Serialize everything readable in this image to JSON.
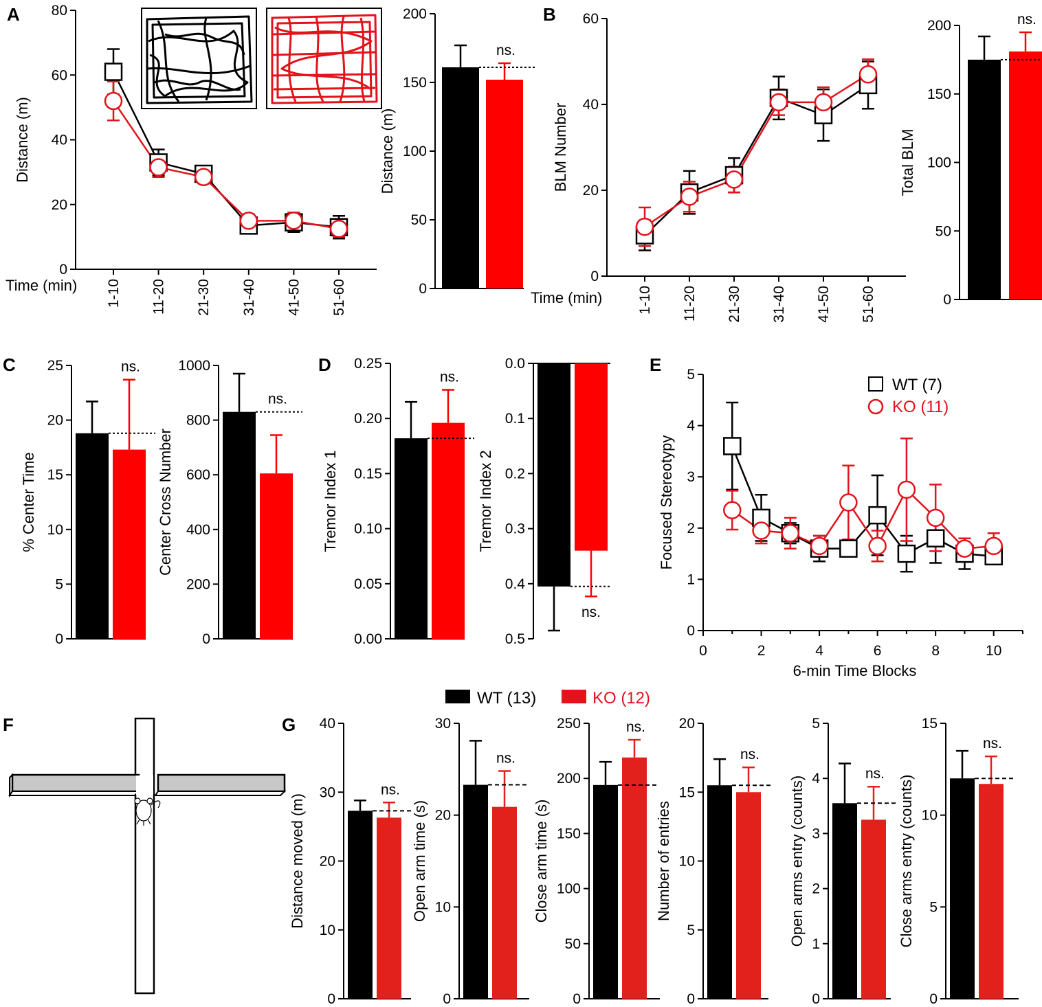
{
  "figure": {
    "colors": {
      "wt": "#000000",
      "ko": "#e3121b",
      "ko_bar": "#ff0000"
    },
    "legends": {
      "e": [
        {
          "label": "WT (7)",
          "color": "#000000"
        },
        {
          "label": "KO (11)",
          "color": "#e3121b"
        }
      ],
      "g": [
        {
          "label": "WT (13)",
          "color": "#000000"
        },
        {
          "label": "KO (12)",
          "color": "#e3121b"
        }
      ]
    }
  },
  "chart_data": [
    {
      "id": "A1",
      "panel": "A",
      "type": "line",
      "ylabel": "Distance (m)",
      "xlabel": "Time (min)",
      "categories": [
        "1-10",
        "11-20",
        "21-30",
        "31-40",
        "41-50",
        "51-60"
      ],
      "ylim": [
        0,
        80
      ],
      "yticks": [
        0,
        20,
        40,
        60,
        80
      ],
      "series": [
        {
          "name": "WT",
          "marker": "square",
          "values": [
            61,
            33,
            29.5,
            13.5,
            14.5,
            13
          ],
          "errors": [
            7,
            4,
            2.5,
            2.5,
            3,
            3.5
          ]
        },
        {
          "name": "KO",
          "marker": "circle",
          "values": [
            52,
            31.5,
            28.5,
            15,
            15,
            12.5
          ],
          "errors": [
            6,
            3,
            2,
            2,
            2.5,
            2.5
          ]
        }
      ],
      "insets": [
        "WT open-field track",
        "KO open-field track"
      ]
    },
    {
      "id": "A2",
      "panel": "A",
      "type": "bar",
      "ylabel": "Distance (m)",
      "ylim": [
        0,
        200
      ],
      "yticks": [
        0,
        50,
        100,
        150,
        200
      ],
      "bars": [
        {
          "name": "WT",
          "value": 161,
          "error": 16
        },
        {
          "name": "KO",
          "value": 152,
          "error": 12
        }
      ],
      "annotation": "ns."
    },
    {
      "id": "B1",
      "panel": "B",
      "type": "line",
      "ylabel": "BLM Number",
      "xlabel": "Time (min)",
      "categories": [
        "1-10",
        "11-20",
        "21-30",
        "31-40",
        "41-50",
        "51-60"
      ],
      "ylim": [
        0,
        60
      ],
      "yticks": [
        0,
        20,
        40,
        60
      ],
      "series": [
        {
          "name": "WT",
          "marker": "square",
          "values": [
            9.5,
            19.5,
            23.5,
            41.5,
            37.5,
            44.5
          ],
          "errors": [
            3.5,
            5,
            4,
            5,
            6,
            5.5
          ]
        },
        {
          "name": "KO",
          "marker": "circle",
          "values": [
            11.5,
            18.5,
            22.5,
            40.5,
            40.5,
            47
          ],
          "errors": [
            4.5,
            3.5,
            3,
            3,
            3.5,
            3.5
          ]
        }
      ]
    },
    {
      "id": "B2",
      "panel": "B",
      "type": "bar",
      "ylabel": "Total BLM",
      "ylim": [
        0,
        200
      ],
      "yticks": [
        0,
        50,
        100,
        150,
        200
      ],
      "bars": [
        {
          "name": "WT",
          "value": 175,
          "error": 17
        },
        {
          "name": "KO",
          "value": 181,
          "error": 14
        }
      ],
      "annotation": "ns."
    },
    {
      "id": "C1",
      "panel": "C",
      "type": "bar",
      "ylabel": "% Center Time",
      "ylim": [
        0,
        25
      ],
      "yticks": [
        0,
        5,
        10,
        15,
        20,
        25
      ],
      "bars": [
        {
          "name": "WT",
          "value": 18.8,
          "error": 2.9
        },
        {
          "name": "KO",
          "value": 17.3,
          "error": 6.4
        }
      ],
      "annotation": "ns."
    },
    {
      "id": "C2",
      "panel": "C",
      "type": "bar",
      "ylabel": "Center Cross Number",
      "ylim": [
        0,
        1000
      ],
      "yticks": [
        0,
        200,
        400,
        600,
        800,
        1000
      ],
      "bars": [
        {
          "name": "WT",
          "value": 830,
          "error": 140
        },
        {
          "name": "KO",
          "value": 605,
          "error": 140
        }
      ],
      "annotation": "ns."
    },
    {
      "id": "D1",
      "panel": "D",
      "type": "bar",
      "ylabel": "Tremor Index 1",
      "ylim": [
        0,
        0.25
      ],
      "yticks": [
        "0.00",
        "0.05",
        "0.10",
        "0.15",
        "0.20",
        "0.25"
      ],
      "bars": [
        {
          "name": "WT",
          "value": 0.182,
          "error": 0.033
        },
        {
          "name": "KO",
          "value": 0.196,
          "error": 0.03
        }
      ],
      "annotation": "ns."
    },
    {
      "id": "D2",
      "panel": "D",
      "type": "bar",
      "ylabel": "Tremor Index 2",
      "ylim": [
        0,
        0.5
      ],
      "inverted": true,
      "yticks": [
        "0.0",
        "0.1",
        "0.2",
        "0.3",
        "0.4",
        "0.5"
      ],
      "bars": [
        {
          "name": "WT",
          "value": 0.405,
          "error": 0.08
        },
        {
          "name": "KO",
          "value": 0.34,
          "error": 0.083
        }
      ],
      "annotation": "ns."
    },
    {
      "id": "E",
      "panel": "E",
      "type": "line",
      "ylabel": "Focused Stereotypy",
      "xlabel": "6-min Time Blocks",
      "xlim": [
        0,
        11
      ],
      "xticks": [
        0,
        2,
        4,
        6,
        8,
        10
      ],
      "ylim": [
        0,
        5
      ],
      "yticks": [
        0,
        1,
        2,
        3,
        4,
        5
      ],
      "x": [
        1,
        2,
        3,
        4,
        5,
        6,
        7,
        8,
        9,
        10
      ],
      "series": [
        {
          "name": "WT (7)",
          "marker": "square",
          "values": [
            3.6,
            2.2,
            1.9,
            1.6,
            1.6,
            2.25,
            1.5,
            1.8,
            1.5,
            1.45
          ],
          "errors": [
            0.85,
            0.45,
            0.2,
            0.25,
            0,
            0.78,
            0.35,
            0.48,
            0.3,
            0.15
          ]
        },
        {
          "name": "KO (11)",
          "marker": "circle",
          "values": [
            2.35,
            1.95,
            1.9,
            1.65,
            2.5,
            1.65,
            2.75,
            2.2,
            1.6,
            1.65
          ],
          "errors": [
            0.38,
            0.25,
            0.3,
            0.2,
            0.72,
            0.3,
            1.0,
            0.65,
            0.2,
            0.25
          ]
        }
      ]
    },
    {
      "id": "G1",
      "panel": "G",
      "type": "bar",
      "ylabel": "Distance moved (m)",
      "ylim": [
        0,
        40
      ],
      "yticks": [
        0,
        10,
        20,
        30,
        40
      ],
      "bars": [
        {
          "name": "WT",
          "value": 27.3,
          "error": 1.5
        },
        {
          "name": "KO",
          "value": 26.3,
          "error": 2.2
        }
      ],
      "annotation": "ns."
    },
    {
      "id": "G2",
      "panel": "G",
      "type": "bar",
      "ylabel": "Open arm time (s)",
      "ylim": [
        0,
        30
      ],
      "yticks": [
        0,
        10,
        20,
        30
      ],
      "bars": [
        {
          "name": "WT",
          "value": 23.3,
          "error": 4.8
        },
        {
          "name": "KO",
          "value": 20.9,
          "error": 3.9
        }
      ],
      "annotation": "ns."
    },
    {
      "id": "G3",
      "panel": "G",
      "type": "bar",
      "ylabel": "Close arm time (s)",
      "ylim": [
        0,
        250
      ],
      "yticks": [
        0,
        50,
        100,
        150,
        200,
        250
      ],
      "bars": [
        {
          "name": "WT",
          "value": 194,
          "error": 21
        },
        {
          "name": "KO",
          "value": 219,
          "error": 16
        }
      ],
      "annotation": "ns."
    },
    {
      "id": "G4",
      "panel": "G",
      "type": "bar",
      "ylabel": "Number of entries",
      "ylim": [
        0,
        20
      ],
      "yticks": [
        0,
        5,
        10,
        15,
        20
      ],
      "bars": [
        {
          "name": "WT",
          "value": 15.5,
          "error": 1.9
        },
        {
          "name": "KO",
          "value": 15.0,
          "error": 1.8
        }
      ],
      "annotation": "ns."
    },
    {
      "id": "G5",
      "panel": "G",
      "type": "bar",
      "ylabel": "Open arms entry (counts)",
      "ylim": [
        0,
        5
      ],
      "yticks": [
        0,
        1,
        2,
        3,
        4,
        5
      ],
      "bars": [
        {
          "name": "WT",
          "value": 3.55,
          "error": 0.72
        },
        {
          "name": "KO",
          "value": 3.25,
          "error": 0.6
        }
      ],
      "annotation": "ns."
    },
    {
      "id": "G6",
      "panel": "G",
      "type": "bar",
      "ylabel": "Close arms entry (counts)",
      "ylim": [
        0,
        15
      ],
      "yticks": [
        0,
        5,
        10,
        15
      ],
      "bars": [
        {
          "name": "WT",
          "value": 12.0,
          "error": 1.5
        },
        {
          "name": "KO",
          "value": 11.7,
          "error": 1.5
        }
      ],
      "annotation": "ns."
    }
  ]
}
